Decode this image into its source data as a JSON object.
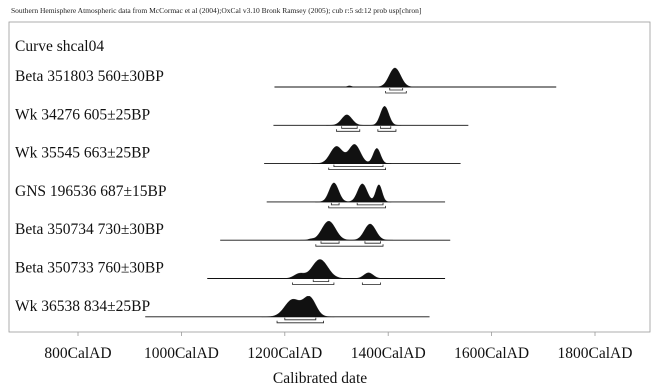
{
  "header": "Southern Hemisphere Atmospheric data from McCormac et al (2004);OxCal v3.10 Bronk Ramsey (2005); cub r:5 sd:12 prob usp[chron]",
  "chart_data": {
    "type": "area",
    "title": "",
    "curve_label": "Curve shcal04",
    "xlabel": "Calibrated date",
    "x_unit_suffix": "CalAD",
    "xlim": [
      690,
      1850
    ],
    "x_ticks": [
      800,
      1000,
      1200,
      1400,
      1600,
      1800
    ],
    "x_tick_labels": [
      "800CalAD",
      "1000CalAD",
      "1200CalAD",
      "1400CalAD",
      "1600CalAD",
      "1800CalAD"
    ],
    "grid": false,
    "samples": [
      {
        "label": "Beta 351803  560±30BP",
        "range": [
          1180,
          1725
        ],
        "peaks": [
          {
            "center": 1413,
            "sd": 11,
            "amp": 1.0
          },
          {
            "center": 1325,
            "sd": 4,
            "amp": 0.06
          }
        ],
        "hpd_1sigma": [
          [
            1403,
            1428
          ]
        ],
        "hpd_2sigma": [
          [
            1395,
            1435
          ]
        ]
      },
      {
        "label": "Wk 34276  605±25BP",
        "range": [
          1178,
          1555
        ],
        "peaks": [
          {
            "center": 1320,
            "sd": 10,
            "amp": 0.55
          },
          {
            "center": 1393,
            "sd": 8,
            "amp": 1.0
          }
        ],
        "hpd_1sigma": [
          [
            1310,
            1340
          ],
          [
            1385,
            1405
          ]
        ],
        "hpd_2sigma": [
          [
            1300,
            1345
          ],
          [
            1380,
            1415
          ]
        ]
      },
      {
        "label": "Wk 35545  663±25BP",
        "range": [
          1160,
          1540
        ],
        "peaks": [
          {
            "center": 1300,
            "sd": 12,
            "amp": 0.9
          },
          {
            "center": 1335,
            "sd": 11,
            "amp": 1.0
          },
          {
            "center": 1378,
            "sd": 7,
            "amp": 0.8
          }
        ],
        "hpd_1sigma": [
          [
            1295,
            1390
          ]
        ],
        "hpd_2sigma": [
          [
            1285,
            1395
          ]
        ]
      },
      {
        "label": "GNS 196536  687±15BP",
        "range": [
          1165,
          1510
        ],
        "peaks": [
          {
            "center": 1295,
            "sd": 9,
            "amp": 1.0
          },
          {
            "center": 1350,
            "sd": 9,
            "amp": 0.95
          },
          {
            "center": 1382,
            "sd": 6,
            "amp": 0.9
          }
        ],
        "hpd_1sigma": [
          [
            1290,
            1305
          ],
          [
            1340,
            1390
          ]
        ],
        "hpd_2sigma": [
          [
            1285,
            1395
          ]
        ]
      },
      {
        "label": "Beta 350734  730±30BP",
        "range": [
          1075,
          1520
        ],
        "peaks": [
          {
            "center": 1285,
            "sd": 13,
            "amp": 1.0
          },
          {
            "center": 1365,
            "sd": 11,
            "amp": 0.85
          },
          {
            "center": 1250,
            "sd": 5,
            "amp": 0.05
          }
        ],
        "hpd_1sigma": [
          [
            1270,
            1305
          ],
          [
            1355,
            1385
          ]
        ],
        "hpd_2sigma": [
          [
            1260,
            1390
          ]
        ]
      },
      {
        "label": "Beta 350733  760±30BP",
        "range": [
          1050,
          1510
        ],
        "peaks": [
          {
            "center": 1268,
            "sd": 15,
            "amp": 1.0
          },
          {
            "center": 1228,
            "sd": 10,
            "amp": 0.25
          },
          {
            "center": 1362,
            "sd": 9,
            "amp": 0.3
          }
        ],
        "hpd_1sigma": [
          [
            1255,
            1285
          ]
        ],
        "hpd_2sigma": [
          [
            1215,
            1295
          ],
          [
            1350,
            1385
          ]
        ]
      },
      {
        "label": "Wk 36538  834±25BP",
        "range": [
          930,
          1480
        ],
        "peaks": [
          {
            "center": 1215,
            "sd": 15,
            "amp": 0.9
          },
          {
            "center": 1248,
            "sd": 12,
            "amp": 1.0
          }
        ],
        "hpd_1sigma": [
          [
            1200,
            1260
          ]
        ],
        "hpd_2sigma": [
          [
            1185,
            1275
          ]
        ]
      }
    ]
  }
}
